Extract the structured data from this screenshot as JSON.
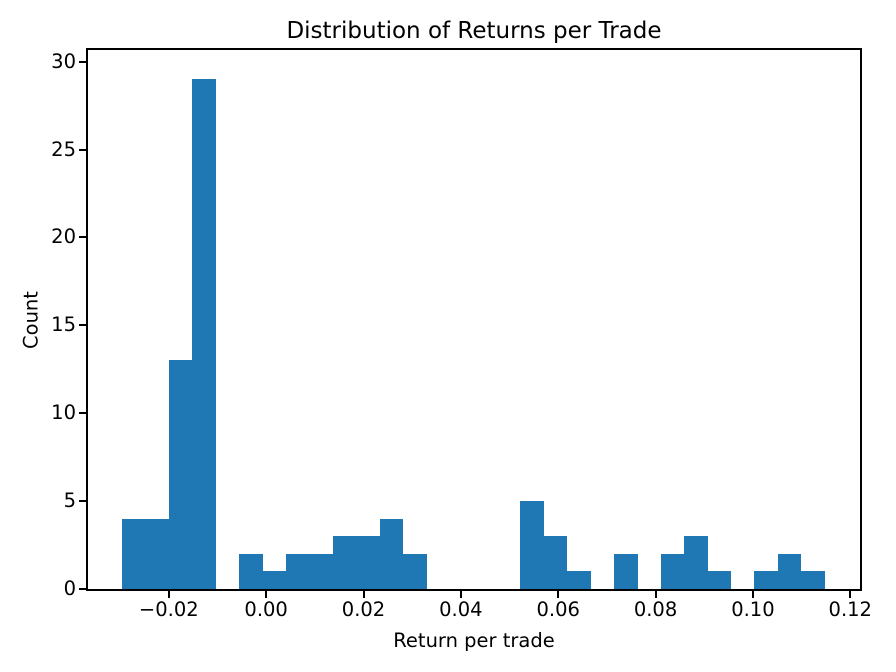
{
  "chart_data": {
    "type": "bar",
    "subtype": "histogram",
    "title": "Distribution of Returns per Trade",
    "xlabel": "Return per trade",
    "ylabel": "Count",
    "bar_color": "#1f77b4",
    "axis_color": "#000000",
    "background_color": "#ffffff",
    "grid": false,
    "legend": false,
    "n_bins": 30,
    "bin_start": -0.0296,
    "bin_width": 0.00481,
    "counts": [
      4,
      4,
      13,
      29,
      0,
      2,
      1,
      2,
      2,
      3,
      3,
      4,
      2,
      0,
      0,
      0,
      0,
      5,
      3,
      1,
      0,
      2,
      0,
      2,
      3,
      1,
      0,
      1,
      2,
      1
    ],
    "xlim": [
      -0.0366,
      0.122
    ],
    "ylim": [
      0,
      30.66
    ],
    "xticks": [
      {
        "value": -0.02,
        "label": "−0.02"
      },
      {
        "value": 0.0,
        "label": "0.00"
      },
      {
        "value": 0.02,
        "label": "0.02"
      },
      {
        "value": 0.04,
        "label": "0.04"
      },
      {
        "value": 0.06,
        "label": "0.06"
      },
      {
        "value": 0.08,
        "label": "0.08"
      },
      {
        "value": 0.1,
        "label": "0.10"
      },
      {
        "value": 0.12,
        "label": "0.12"
      }
    ],
    "yticks": [
      {
        "value": 0,
        "label": "0"
      },
      {
        "value": 5,
        "label": "5"
      },
      {
        "value": 10,
        "label": "10"
      },
      {
        "value": 15,
        "label": "15"
      },
      {
        "value": 20,
        "label": "20"
      },
      {
        "value": 25,
        "label": "25"
      },
      {
        "value": 30,
        "label": "30"
      }
    ]
  }
}
